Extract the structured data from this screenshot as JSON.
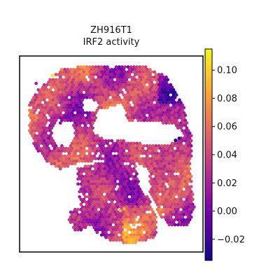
{
  "chart_data": {
    "type": "scatter",
    "title_line1": "ZH916T1",
    "title_line2": "IRF2 activity",
    "xlabel": "",
    "ylabel": "",
    "axes_visible": false,
    "grid": false,
    "colormap": "plasma",
    "colorbar": {
      "vmin": -0.035,
      "vmax": 0.115,
      "ticks": [
        -0.02,
        0.0,
        0.02,
        0.04,
        0.06,
        0.08,
        0.1
      ],
      "tick_labels": [
        "−0.02",
        "0.00",
        "0.02",
        "0.04",
        "0.06",
        "0.08",
        "0.10"
      ]
    },
    "plasma_stops": [
      "#0d0887",
      "#46039f",
      "#7201a8",
      "#9c179e",
      "#bd3786",
      "#d8576b",
      "#ed7953",
      "#fb9f3a",
      "#fdca26",
      "#f0f921"
    ],
    "spots": [
      {
        "x": 0.18,
        "y": 0.9,
        "v": 0.11
      },
      {
        "x": 0.23,
        "y": 0.93,
        "v": 0.075
      },
      {
        "x": 0.09,
        "y": 0.86,
        "v": 0.02
      },
      {
        "x": 0.55,
        "y": 0.21,
        "v": 0.085
      },
      {
        "x": 0.57,
        "y": 0.22,
        "v": 0.09
      },
      {
        "x": 0.85,
        "y": 0.57,
        "v": -0.03
      },
      {
        "x": 0.87,
        "y": 0.58,
        "v": -0.03
      }
    ]
  }
}
